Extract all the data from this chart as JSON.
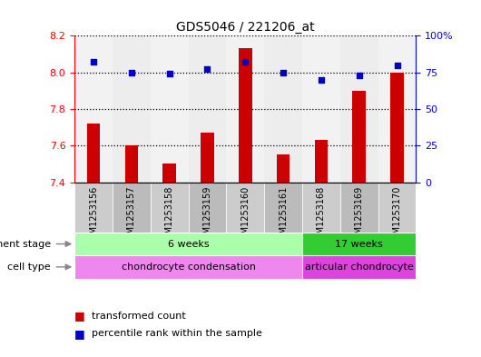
{
  "title": "GDS5046 / 221206_at",
  "samples": [
    "GSM1253156",
    "GSM1253157",
    "GSM1253158",
    "GSM1253159",
    "GSM1253160",
    "GSM1253161",
    "GSM1253168",
    "GSM1253169",
    "GSM1253170"
  ],
  "transformed_count": [
    7.72,
    7.6,
    7.5,
    7.67,
    8.13,
    7.55,
    7.63,
    7.9,
    8.0
  ],
  "percentile_rank": [
    82,
    75,
    74,
    77,
    82,
    75,
    70,
    73,
    80
  ],
  "ylim_left": [
    7.4,
    8.2
  ],
  "ylim_right": [
    0,
    100
  ],
  "yticks_left": [
    7.4,
    7.6,
    7.8,
    8.0,
    8.2
  ],
  "yticks_right": [
    0,
    25,
    50,
    75,
    100
  ],
  "ytick_labels_right": [
    "0",
    "25",
    "50",
    "75",
    "100%"
  ],
  "bar_color": "#cc0000",
  "dot_color": "#0000cc",
  "development_stage_label": "development stage",
  "cell_type_label": "cell type",
  "groups": [
    {
      "label": "6 weeks",
      "start": 0,
      "end": 6,
      "color": "#aaffaa"
    },
    {
      "label": "17 weeks",
      "start": 6,
      "end": 9,
      "color": "#33cc33"
    }
  ],
  "cell_types": [
    {
      "label": "chondrocyte condensation",
      "start": 0,
      "end": 6,
      "color": "#ee88ee"
    },
    {
      "label": "articular chondrocyte",
      "start": 6,
      "end": 9,
      "color": "#dd44dd"
    }
  ],
  "legend_bar_label": "transformed count",
  "legend_dot_label": "percentile rank within the sample",
  "bg_color": "#ffffff",
  "col_bg_colors": [
    "#cccccc",
    "#bbbbbb"
  ],
  "bar_width": 0.35
}
